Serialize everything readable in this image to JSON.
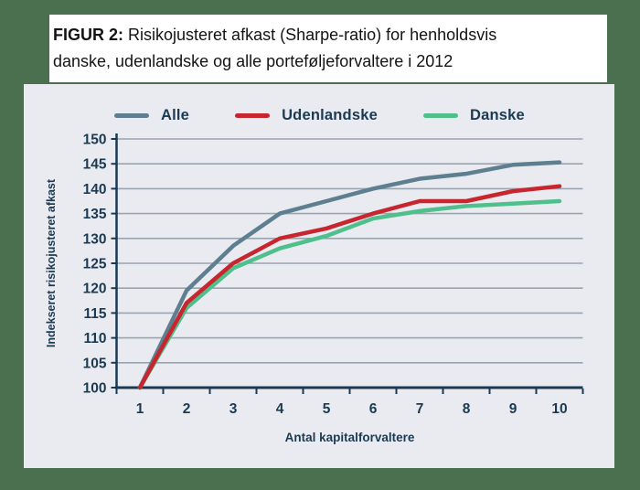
{
  "title": {
    "prefix": "FIGUR 2:",
    "rest_line1": "Risikojusteret afkast (Sharpe-ratio) for henholdsvis",
    "line2": "danske, udenlandske og alle porteføljeforvaltere i 2012"
  },
  "colors": {
    "page_bg": "#4A7050",
    "panel_bg": "#E9EBF1",
    "title_bg": "#FFFFFF",
    "axis": "#1B3A52",
    "grid": "#9AA3B0",
    "text": "#1B3A52"
  },
  "chart_data": {
    "type": "line",
    "x": [
      1,
      2,
      3,
      4,
      5,
      6,
      7,
      8,
      9,
      10
    ],
    "series": [
      {
        "name": "Alle",
        "color": "#5E7F8F",
        "values": [
          100,
          119.5,
          128.5,
          135,
          137.5,
          140,
          142,
          143,
          144.8,
          145.3
        ]
      },
      {
        "name": "Udenlandske",
        "color": "#C8262F",
        "values": [
          100,
          117,
          125,
          130,
          132,
          135,
          137.5,
          137.5,
          139.5,
          140.5
        ]
      },
      {
        "name": "Danske",
        "color": "#4FBF8B",
        "values": [
          100,
          116,
          124,
          128,
          130.5,
          134,
          135.5,
          136.5,
          137,
          137.5
        ]
      }
    ],
    "xlabel": "Antal kapitalforvaltere",
    "ylabel": "Indekseret risikojusteret afkast",
    "ylim": [
      100,
      150
    ],
    "ytick_step": 5,
    "xtick_labels": [
      "1",
      "2",
      "3",
      "4",
      "5",
      "6",
      "7",
      "8",
      "9",
      "10"
    ],
    "grid": true,
    "legend_position": "top"
  }
}
